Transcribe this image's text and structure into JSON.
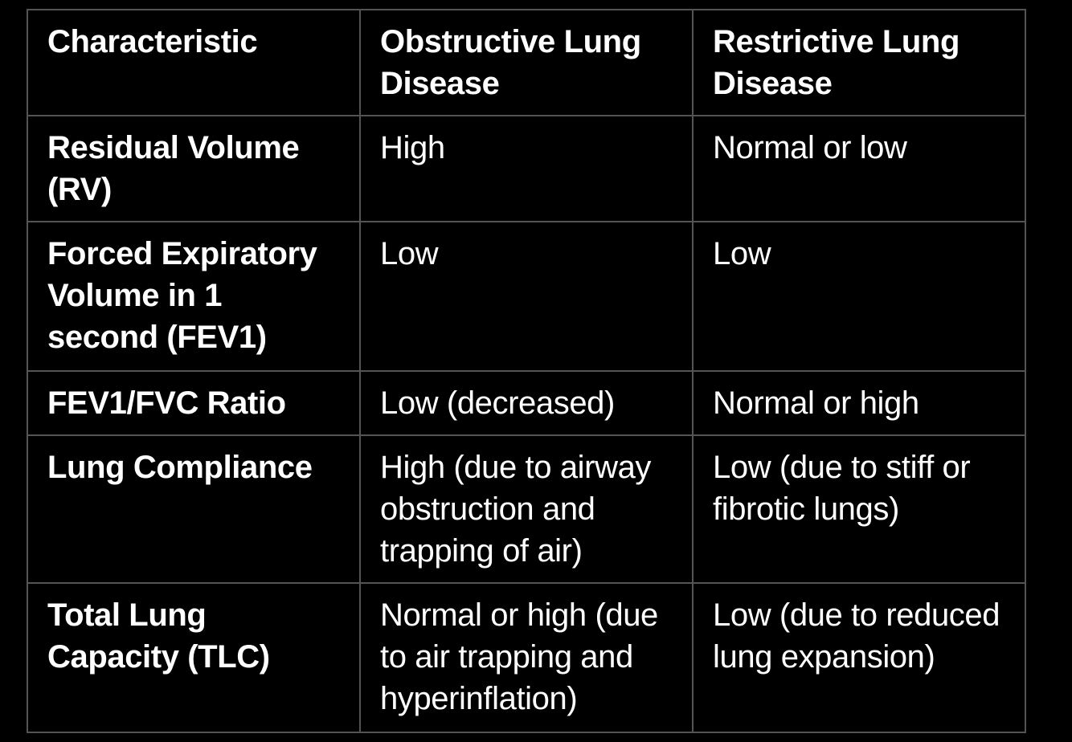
{
  "colors": {
    "background": "#000000",
    "border": "#545456",
    "text": "#ffffff"
  },
  "table": {
    "columns": {
      "characteristic": "Characteristic",
      "obstructive": "Obstructive Lung Disease",
      "restrictive": "Restrictive Lung Disease"
    },
    "rows": [
      {
        "characteristic": "Residual Volume (RV)",
        "obstructive": "High",
        "restrictive": "Normal or low"
      },
      {
        "characteristic": "Forced Expiratory Volume in 1 second (FEV1)",
        "obstructive": "Low",
        "restrictive": "Low"
      },
      {
        "characteristic": "FEV1/FVC Ratio",
        "obstructive": "Low (decreased)",
        "restrictive": "Normal or high"
      },
      {
        "characteristic": "Lung Compliance",
        "obstructive": "High (due to airway obstruction and trapping of air)",
        "restrictive": "Low (due to stiff or fibrotic lungs)"
      },
      {
        "characteristic": "Total Lung Capacity (TLC)",
        "obstructive": "Normal or high (due to air trapping and hyperinflation)",
        "restrictive": "Low (due to reduced lung expansion)"
      }
    ]
  }
}
